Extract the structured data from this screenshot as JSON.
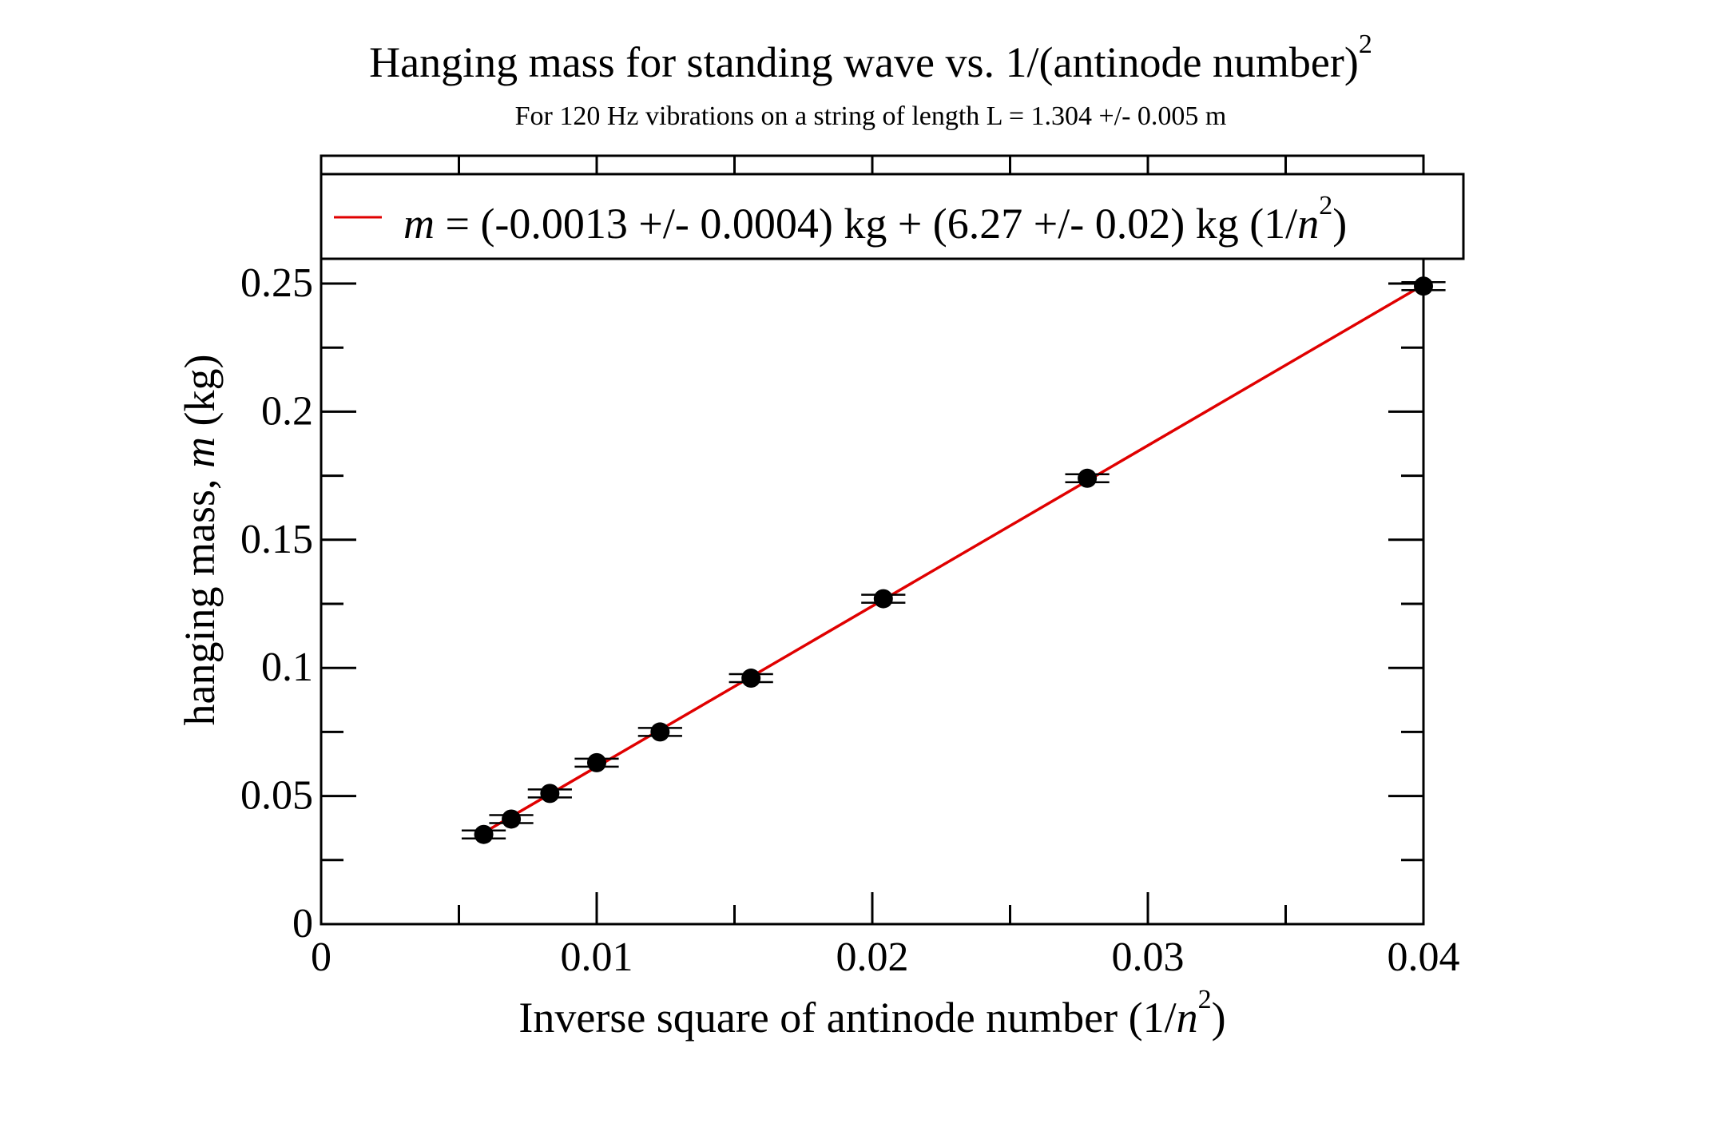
{
  "chart_data": {
    "type": "scatter",
    "title_main": "Hanging mass for standing wave vs. 1/(antinode number)",
    "title_sup": "2",
    "subtitle": "For 120 Hz vibrations on a string of length L = 1.304 +/- 0.005 m",
    "xlabel_main": "Inverse square of antinode number (1/",
    "xlabel_var": "n",
    "xlabel_sup": "2",
    "xlabel_end": ")",
    "ylabel_main": "hanging mass, ",
    "ylabel_var": "m",
    "ylabel_end": " (kg)",
    "xlim": [
      0,
      0.04
    ],
    "ylim": [
      0,
      0.25
    ],
    "x_ticks": [
      {
        "value": 0,
        "label": "0"
      },
      {
        "value": 0.01,
        "label": "0.01"
      },
      {
        "value": 0.02,
        "label": "0.02"
      },
      {
        "value": 0.03,
        "label": "0.03"
      },
      {
        "value": 0.04,
        "label": "0.04"
      }
    ],
    "x_minor_ticks": [
      0.005,
      0.015,
      0.025,
      0.035
    ],
    "y_ticks": [
      {
        "value": 0,
        "label": "0"
      },
      {
        "value": 0.05,
        "label": "0.05"
      },
      {
        "value": 0.1,
        "label": "0.1"
      },
      {
        "value": 0.15,
        "label": "0.15"
      },
      {
        "value": 0.2,
        "label": "0.2"
      },
      {
        "value": 0.25,
        "label": "0.25"
      }
    ],
    "y_minor_ticks": [
      0.025,
      0.075,
      0.125,
      0.175,
      0.225
    ],
    "points": {
      "x": [
        0.0059,
        0.0069,
        0.0083,
        0.01,
        0.0123,
        0.0156,
        0.0204,
        0.0278,
        0.04
      ],
      "y": [
        0.035,
        0.041,
        0.051,
        0.063,
        0.075,
        0.096,
        0.127,
        0.174,
        0.249
      ],
      "x_err": 0.0008,
      "color": "#000000"
    },
    "fit_line": {
      "intercept": -0.0013,
      "slope": 6.27,
      "x_range": [
        0.0059,
        0.04
      ],
      "color": "#e00000"
    },
    "legend": {
      "placement": "top, above plot area",
      "var": "m",
      "text_main": " = (-0.0013 +/- 0.0004) kg + (6.27 +/- 0.02) kg (1/",
      "text_var": "n",
      "text_sup": "2",
      "text_end": ")"
    },
    "grid": false
  }
}
